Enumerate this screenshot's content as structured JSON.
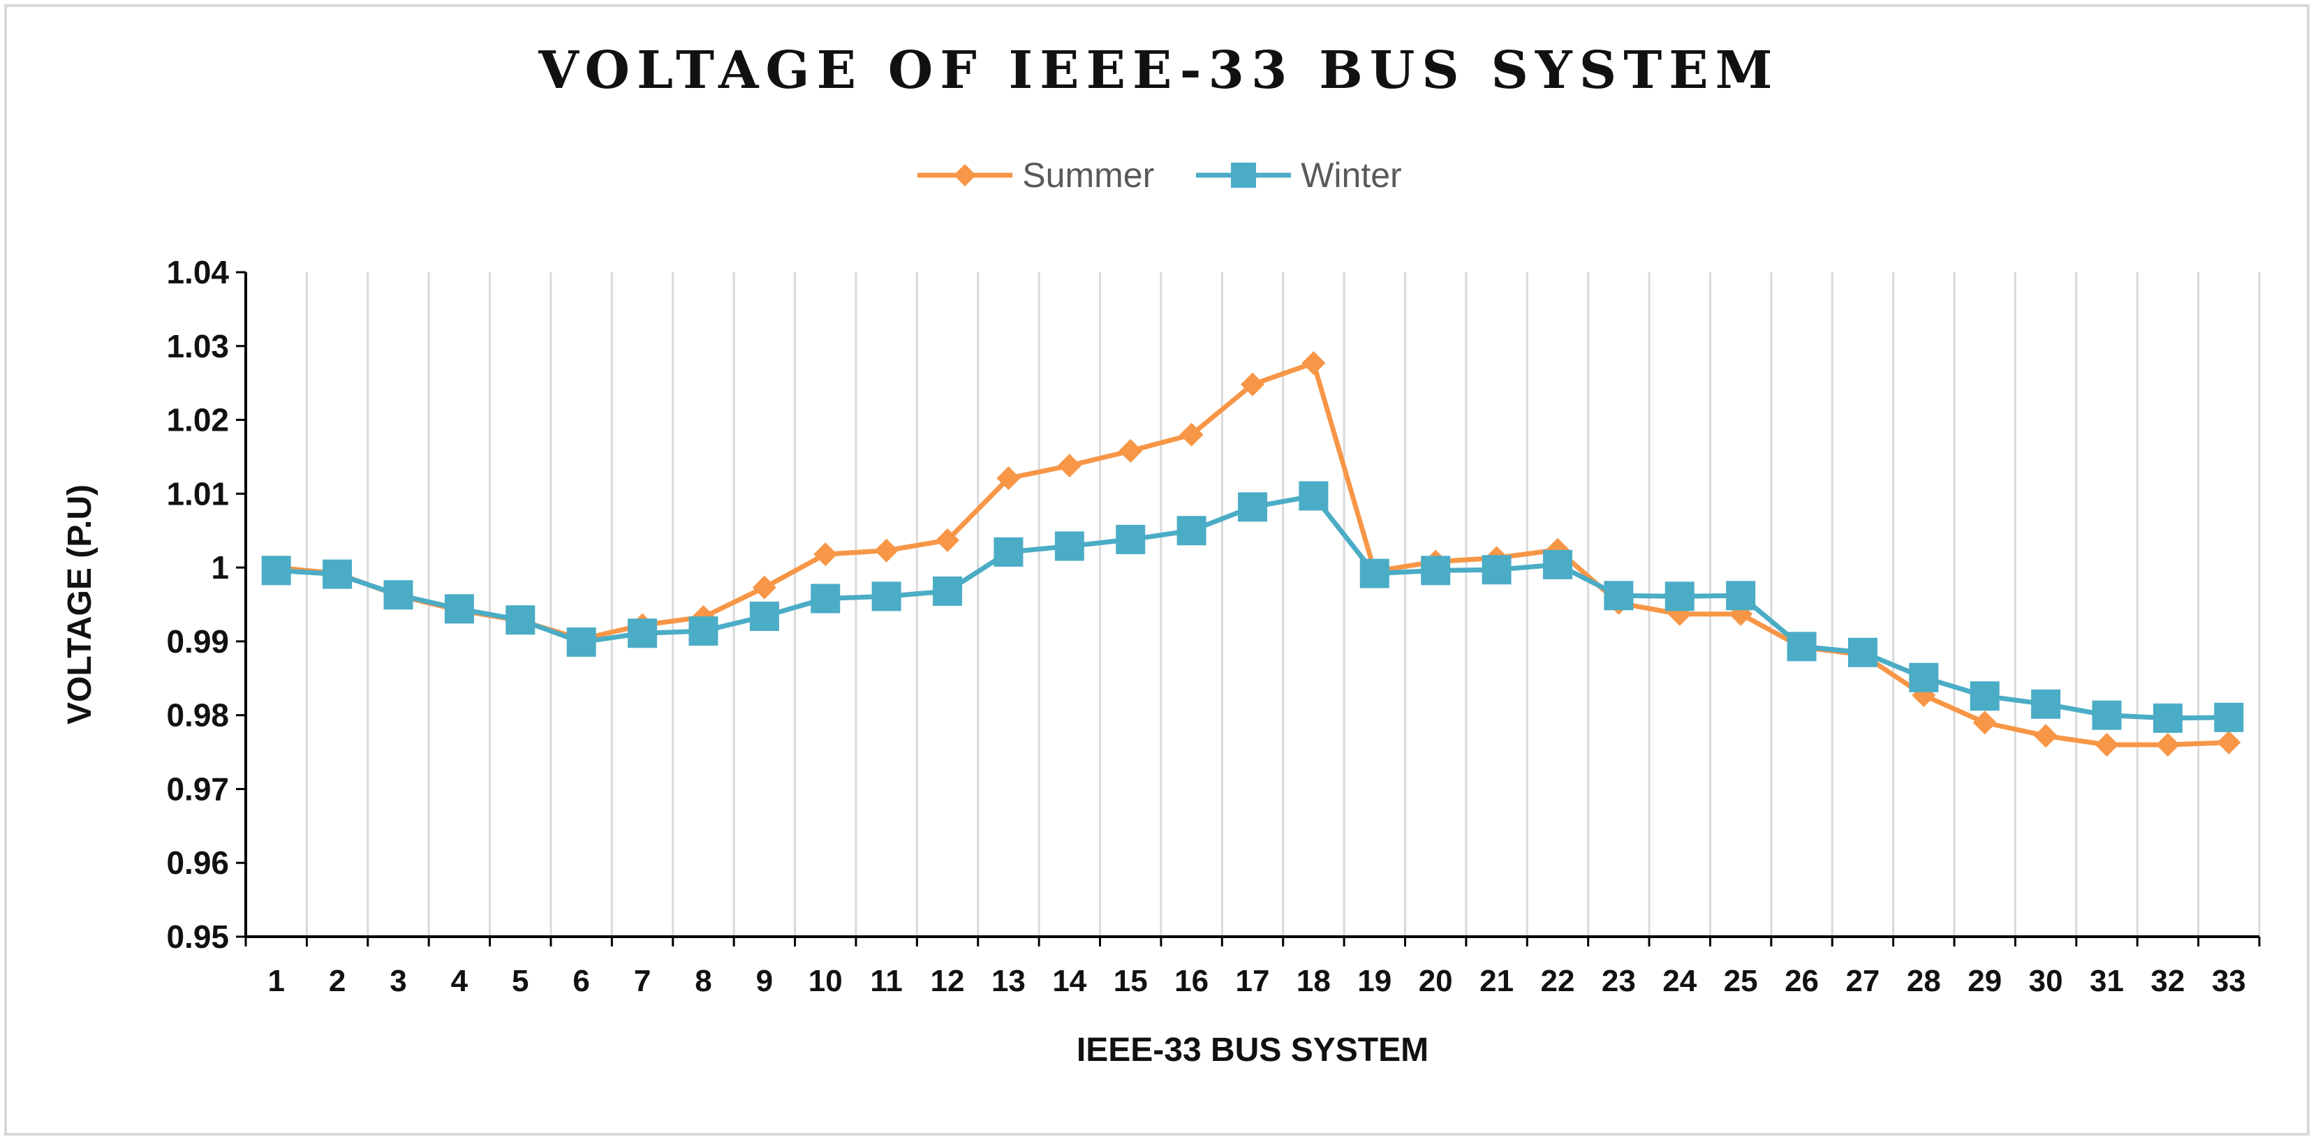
{
  "chart_data": {
    "type": "line",
    "title": "VOLTAGE OF IEEE-33 BUS SYSTEM",
    "xlabel": "IEEE-33 BUS SYSTEM",
    "ylabel": "VOLTAGE (P.U)",
    "ylim": [
      0.95,
      1.04
    ],
    "yticks": [
      "0.95",
      "0.96",
      "0.97",
      "0.98",
      "0.99",
      "1",
      "1.01",
      "1.02",
      "1.03",
      "1.04"
    ],
    "categories": [
      "1",
      "2",
      "3",
      "4",
      "5",
      "6",
      "7",
      "8",
      "9",
      "10",
      "11",
      "12",
      "13",
      "14",
      "15",
      "16",
      "17",
      "18",
      "19",
      "20",
      "21",
      "22",
      "23",
      "24",
      "25",
      "26",
      "27",
      "28",
      "29",
      "30",
      "31",
      "32",
      "33"
    ],
    "grid": "vertical",
    "legend_position": "top",
    "series": [
      {
        "name": "Summer",
        "color": "#f79646",
        "marker": "diamond",
        "values": [
          1.0,
          0.9992,
          0.9962,
          0.9942,
          0.9928,
          0.9903,
          0.9922,
          0.9933,
          0.9973,
          1.0018,
          1.0023,
          1.0037,
          1.0121,
          1.0138,
          1.0158,
          1.018,
          1.0248,
          1.0277,
          0.9995,
          1.0008,
          1.0013,
          1.0024,
          0.9952,
          0.9937,
          0.9937,
          0.9892,
          0.9882,
          0.9827,
          0.979,
          0.9772,
          0.976,
          0.976,
          0.9763
        ]
      },
      {
        "name": "Winter",
        "color": "#4bacc6",
        "marker": "square",
        "values": [
          0.9996,
          0.9991,
          0.9963,
          0.9944,
          0.9929,
          0.9899,
          0.9911,
          0.9914,
          0.9934,
          0.9958,
          0.9961,
          0.9968,
          1.0021,
          1.0029,
          1.0038,
          1.005,
          1.0082,
          1.0097,
          0.9992,
          0.9996,
          0.9997,
          1.0004,
          0.9962,
          0.9961,
          0.9962,
          0.9893,
          0.9885,
          0.9851,
          0.9826,
          0.9815,
          0.98,
          0.9796,
          0.9797
        ]
      }
    ]
  }
}
